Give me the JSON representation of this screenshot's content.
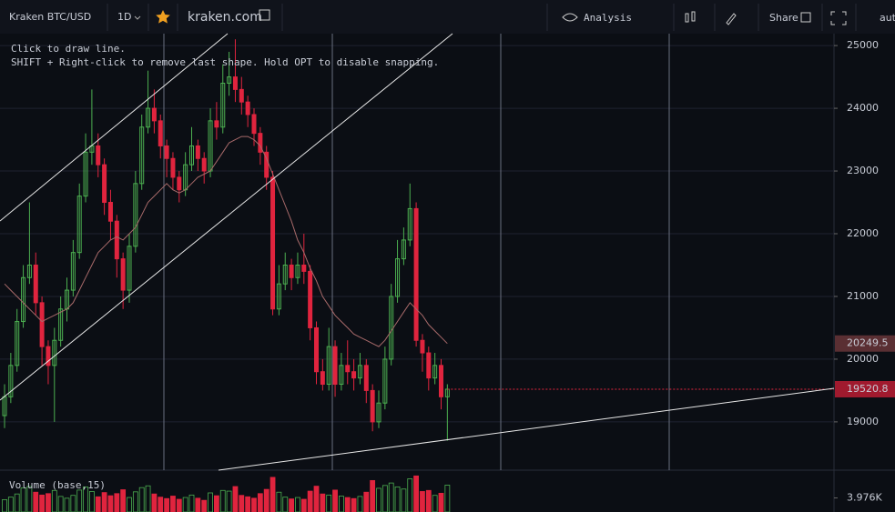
{
  "toolbar": {
    "symbol": "Kraken BTC/USD",
    "interval": "1D",
    "site": "kraken.com",
    "analysis": "Analysis",
    "share": "Share",
    "scale": "aut"
  },
  "hint": [
    "Click to draw line.",
    "SHIFT + Right-click to remove last shape. Hold OPT to disable snapping."
  ],
  "chart_data": {
    "type": "candlestick",
    "up_color": "#4caf50",
    "down_color": "#e0243e",
    "ma_color": "#a86a6a",
    "grid": true,
    "ylim": [
      18230,
      25190
    ],
    "yticks": [
      25000,
      24000,
      23000,
      22000,
      21000,
      20000,
      19000
    ],
    "volume_label": "Volume (base,15)",
    "y2lim": [
      0,
      10800
    ],
    "y2ticks": [
      {
        "value": 3976,
        "label": "3.976K"
      }
    ],
    "open": [
      19100,
      19400,
      19900,
      20600,
      21300,
      21500,
      20900,
      20200,
      19900,
      20300,
      20800,
      21100,
      21700,
      22600,
      23300,
      23400,
      23100,
      22500,
      22200,
      21600,
      21100,
      21800,
      22800,
      23700,
      24000,
      23800,
      23400,
      23200,
      22900,
      22700,
      23100,
      23400,
      23200,
      23000,
      23800,
      23700,
      24400,
      24500,
      24300,
      24100,
      23900,
      23600,
      23300,
      22900,
      20800,
      21200,
      21500,
      21300,
      21500,
      21400,
      20500,
      19800,
      19600,
      20200,
      19600,
      19900,
      19800,
      19700,
      19900,
      19500,
      19000,
      19300,
      20000,
      21000,
      21600,
      21900,
      22400,
      20300,
      20100,
      19700,
      19900,
      19400
    ],
    "high": [
      19600,
      20100,
      20800,
      21500,
      22500,
      21700,
      21000,
      20300,
      20500,
      21000,
      21300,
      21900,
      22800,
      23600,
      24300,
      23600,
      23200,
      22700,
      22300,
      21700,
      22000,
      23000,
      23900,
      24600,
      24300,
      23900,
      23500,
      23300,
      23000,
      23300,
      23700,
      23500,
      23300,
      24000,
      24100,
      24700,
      24900,
      25100,
      24500,
      24200,
      24000,
      23700,
      23400,
      23000,
      21500,
      21700,
      21600,
      21700,
      22000,
      21500,
      20600,
      20000,
      20500,
      20300,
      20100,
      20300,
      20000,
      20100,
      20000,
      19600,
      19500,
      20200,
      21200,
      21900,
      22100,
      22800,
      22500,
      20400,
      20200,
      20100,
      20000,
      19600
    ],
    "low": [
      18900,
      19300,
      19800,
      20500,
      21200,
      20700,
      19900,
      19600,
      19000,
      20200,
      20600,
      21000,
      21600,
      22500,
      23100,
      22900,
      22300,
      21900,
      21300,
      20800,
      20900,
      21700,
      22700,
      23600,
      23600,
      23200,
      22900,
      22700,
      22500,
      22600,
      23000,
      23000,
      22800,
      22900,
      23500,
      23600,
      24200,
      24100,
      23900,
      23700,
      23400,
      23100,
      22700,
      20700,
      20700,
      21100,
      21100,
      21200,
      21200,
      20300,
      19600,
      19500,
      19500,
      19400,
      19500,
      19600,
      19500,
      19600,
      19300,
      18850,
      18900,
      19200,
      19900,
      20900,
      21500,
      21800,
      20200,
      19800,
      19500,
      19600,
      19200,
      18700
    ],
    "close": [
      19400,
      19900,
      20600,
      21300,
      21500,
      20900,
      20200,
      19900,
      20300,
      20800,
      21100,
      21700,
      22600,
      23300,
      23400,
      23100,
      22500,
      22200,
      21600,
      21100,
      21800,
      22800,
      23700,
      24000,
      23800,
      23400,
      23200,
      22900,
      22700,
      23100,
      23400,
      23200,
      23000,
      23800,
      23700,
      24400,
      24500,
      24300,
      24100,
      23900,
      23600,
      23300,
      22900,
      20800,
      21200,
      21500,
      21300,
      21500,
      21400,
      20500,
      19800,
      19600,
      20200,
      19600,
      19900,
      19800,
      19700,
      19900,
      19500,
      19000,
      19300,
      20000,
      21000,
      21600,
      21900,
      22400,
      20300,
      20100,
      19700,
      19900,
      19400,
      19520.8
    ],
    "ma": [
      21200,
      21100,
      21000,
      20900,
      20800,
      20700,
      20600,
      20650,
      20700,
      20750,
      20800,
      20900,
      21100,
      21300,
      21500,
      21700,
      21800,
      21900,
      21950,
      21900,
      22000,
      22100,
      22300,
      22500,
      22600,
      22700,
      22800,
      22700,
      22650,
      22700,
      22800,
      22900,
      22950,
      23000,
      23150,
      23300,
      23450,
      23500,
      23550,
      23550,
      23500,
      23400,
      23200,
      22950,
      22700,
      22450,
      22200,
      21900,
      21700,
      21450,
      21250,
      21000,
      20850,
      20700,
      20600,
      20500,
      20400,
      20350,
      20300,
      20250,
      20200,
      20300,
      20450,
      20600,
      20750,
      20900,
      20800,
      20700,
      20550,
      20450,
      20350,
      20249.5
    ],
    "volume": [
      3500,
      4200,
      5100,
      6800,
      7200,
      5600,
      4800,
      5200,
      6100,
      4400,
      3900,
      4700,
      6200,
      7100,
      5800,
      4300,
      5500,
      4600,
      5200,
      6300,
      4100,
      5700,
      6900,
      7400,
      5100,
      4200,
      3800,
      4500,
      3600,
      4100,
      4800,
      3900,
      3300,
      5400,
      4600,
      6100,
      5900,
      7200,
      4700,
      4300,
      3900,
      5200,
      6400,
      9800,
      5600,
      4200,
      3700,
      4100,
      3600,
      5900,
      7300,
      5100,
      4800,
      6200,
      4500,
      4100,
      3800,
      4400,
      5600,
      8900,
      6700,
      7500,
      8200,
      7100,
      6500,
      9400,
      10200,
      5800,
      6100,
      4700,
      5300,
      7600
    ]
  }
}
